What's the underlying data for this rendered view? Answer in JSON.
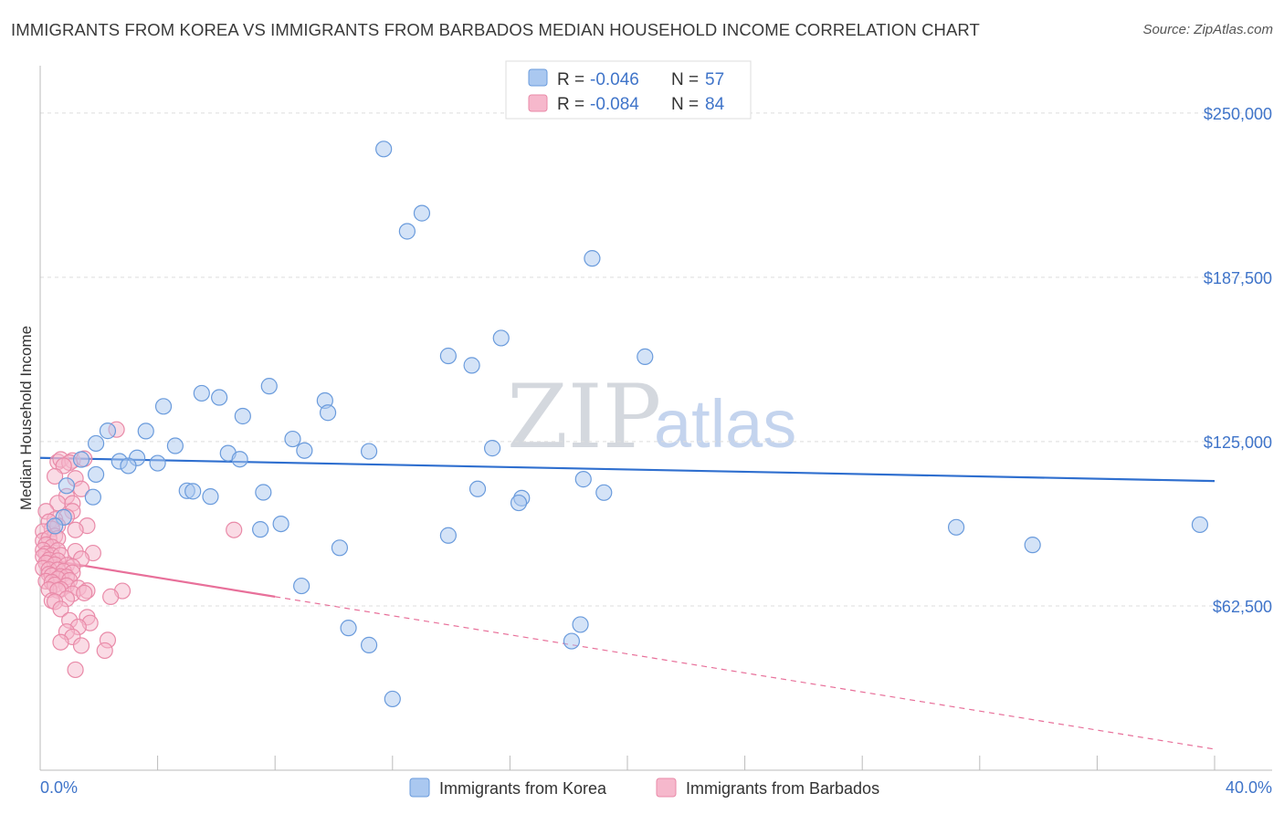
{
  "chart_data": {
    "type": "scatter",
    "title": "IMMIGRANTS FROM KOREA VS IMMIGRANTS FROM BARBADOS MEDIAN HOUSEHOLD INCOME CORRELATION CHART",
    "source": "Source: ZipAtlas.com",
    "ylabel": "Median Household Income",
    "xlim": [
      0,
      40
    ],
    "ylim": [
      0,
      268000
    ],
    "x_tick_labels": {
      "min": "0.0%",
      "max": "40.0%"
    },
    "y_ticks": [
      {
        "value": 62500,
        "label": "$62,500"
      },
      {
        "value": 125000,
        "label": "$125,000"
      },
      {
        "value": 187500,
        "label": "$187,500"
      },
      {
        "value": 250000,
        "label": "$250,000"
      }
    ],
    "legend": [
      {
        "r_label": "R = ",
        "r_value": "-0.046",
        "n_label": "N = ",
        "n_value": "57"
      },
      {
        "r_label": "R = ",
        "r_value": "-0.084",
        "n_label": "N = ",
        "n_value": "84"
      }
    ],
    "watermark": {
      "zip": "ZIP",
      "atlas": "atlas"
    },
    "colors": {
      "korea_fill": "#aac8f0",
      "korea_stroke": "#6a9bdc",
      "korea_line": "#2f6fcf",
      "barbados_fill": "#f6b8cc",
      "barbados_stroke": "#e98aa8",
      "barbados_line": "#e8709a",
      "tick_text": "#3f74c9",
      "grid": "#dddddd"
    },
    "series": [
      {
        "name": "Immigrants from Korea",
        "trend": {
          "x0": 0,
          "y0": 118800,
          "x1": 40,
          "y1": 110000,
          "solid_until": 40
        },
        "points": [
          [
            11.7,
            236300
          ],
          [
            13.0,
            211900
          ],
          [
            12.5,
            205000
          ],
          [
            18.8,
            194700
          ],
          [
            15.7,
            164400
          ],
          [
            13.9,
            157600
          ],
          [
            14.7,
            154000
          ],
          [
            20.6,
            157300
          ],
          [
            7.8,
            146100
          ],
          [
            5.5,
            143400
          ],
          [
            6.1,
            141800
          ],
          [
            9.7,
            140600
          ],
          [
            9.8,
            136000
          ],
          [
            4.2,
            138400
          ],
          [
            6.9,
            134700
          ],
          [
            3.6,
            129000
          ],
          [
            2.3,
            129100
          ],
          [
            8.6,
            126000
          ],
          [
            1.9,
            124300
          ],
          [
            4.6,
            123400
          ],
          [
            9.0,
            121600
          ],
          [
            11.2,
            121300
          ],
          [
            15.4,
            122500
          ],
          [
            6.4,
            120600
          ],
          [
            6.8,
            118300
          ],
          [
            3.3,
            118800
          ],
          [
            2.7,
            117500
          ],
          [
            3.0,
            115800
          ],
          [
            4.0,
            116800
          ],
          [
            1.4,
            118200
          ],
          [
            1.9,
            112500
          ],
          [
            0.9,
            108200
          ],
          [
            5.0,
            106300
          ],
          [
            5.2,
            106100
          ],
          [
            7.6,
            105700
          ],
          [
            5.8,
            104100
          ],
          [
            1.8,
            103900
          ],
          [
            14.9,
            107000
          ],
          [
            16.4,
            103500
          ],
          [
            16.3,
            101700
          ],
          [
            18.5,
            110700
          ],
          [
            19.2,
            105600
          ],
          [
            0.8,
            96200
          ],
          [
            0.5,
            92900
          ],
          [
            8.2,
            93700
          ],
          [
            7.5,
            91600
          ],
          [
            13.9,
            89300
          ],
          [
            10.2,
            84600
          ],
          [
            31.2,
            92400
          ],
          [
            33.8,
            85700
          ],
          [
            39.5,
            93400
          ],
          [
            8.9,
            70100
          ],
          [
            10.5,
            54100
          ],
          [
            11.2,
            47600
          ],
          [
            18.4,
            55400
          ],
          [
            18.1,
            49100
          ],
          [
            12.0,
            27100
          ]
        ]
      },
      {
        "name": "Immigrants from Barbados",
        "trend": {
          "x0": 0,
          "y0": 80500,
          "x1": 40,
          "y1": 8000,
          "solid_until": 8.0
        },
        "points": [
          [
            2.6,
            129600
          ],
          [
            0.6,
            117300
          ],
          [
            0.7,
            118200
          ],
          [
            1.1,
            117800
          ],
          [
            1.0,
            117000
          ],
          [
            1.5,
            118500
          ],
          [
            0.8,
            115800
          ],
          [
            1.2,
            111000
          ],
          [
            0.5,
            111800
          ],
          [
            1.4,
            107000
          ],
          [
            0.9,
            104200
          ],
          [
            0.6,
            101600
          ],
          [
            1.1,
            101500
          ],
          [
            0.2,
            98500
          ],
          [
            1.1,
            98500
          ],
          [
            0.9,
            96400
          ],
          [
            0.5,
            95400
          ],
          [
            0.3,
            94500
          ],
          [
            1.6,
            93000
          ],
          [
            0.6,
            93000
          ],
          [
            0.4,
            91800
          ],
          [
            1.2,
            91400
          ],
          [
            0.1,
            90800
          ],
          [
            6.6,
            91400
          ],
          [
            0.5,
            89100
          ],
          [
            0.1,
            87300
          ],
          [
            0.3,
            88200
          ],
          [
            0.6,
            88200
          ],
          [
            0.2,
            85800
          ],
          [
            0.4,
            84900
          ],
          [
            0.1,
            83700
          ],
          [
            0.6,
            83600
          ],
          [
            1.2,
            83300
          ],
          [
            1.8,
            82600
          ],
          [
            0.2,
            82300
          ],
          [
            0.4,
            81700
          ],
          [
            0.7,
            81800
          ],
          [
            0.1,
            81300
          ],
          [
            1.4,
            80400
          ],
          [
            0.3,
            80000
          ],
          [
            0.6,
            79700
          ],
          [
            0.2,
            78800
          ],
          [
            0.5,
            78200
          ],
          [
            0.9,
            78000
          ],
          [
            1.1,
            77400
          ],
          [
            0.1,
            76800
          ],
          [
            0.3,
            76300
          ],
          [
            0.6,
            76200
          ],
          [
            0.8,
            75700
          ],
          [
            1.1,
            75100
          ],
          [
            0.3,
            74600
          ],
          [
            0.4,
            74000
          ],
          [
            0.7,
            73700
          ],
          [
            0.9,
            73500
          ],
          [
            0.6,
            72800
          ],
          [
            1.0,
            72200
          ],
          [
            0.2,
            71900
          ],
          [
            0.4,
            71500
          ],
          [
            0.5,
            70500
          ],
          [
            0.9,
            70200
          ],
          [
            1.3,
            69300
          ],
          [
            0.7,
            68800
          ],
          [
            0.3,
            68700
          ],
          [
            0.6,
            68400
          ],
          [
            1.6,
            68300
          ],
          [
            2.8,
            68200
          ],
          [
            1.1,
            67100
          ],
          [
            1.5,
            67400
          ],
          [
            0.9,
            65200
          ],
          [
            0.4,
            64500
          ],
          [
            0.5,
            64100
          ],
          [
            2.4,
            66000
          ],
          [
            0.7,
            61300
          ],
          [
            1.6,
            58200
          ],
          [
            1.0,
            57000
          ],
          [
            1.7,
            56000
          ],
          [
            1.3,
            54500
          ],
          [
            0.9,
            52700
          ],
          [
            1.1,
            50700
          ],
          [
            0.7,
            48700
          ],
          [
            2.3,
            49500
          ],
          [
            1.4,
            47400
          ],
          [
            2.2,
            45500
          ],
          [
            1.2,
            38200
          ]
        ]
      }
    ]
  }
}
